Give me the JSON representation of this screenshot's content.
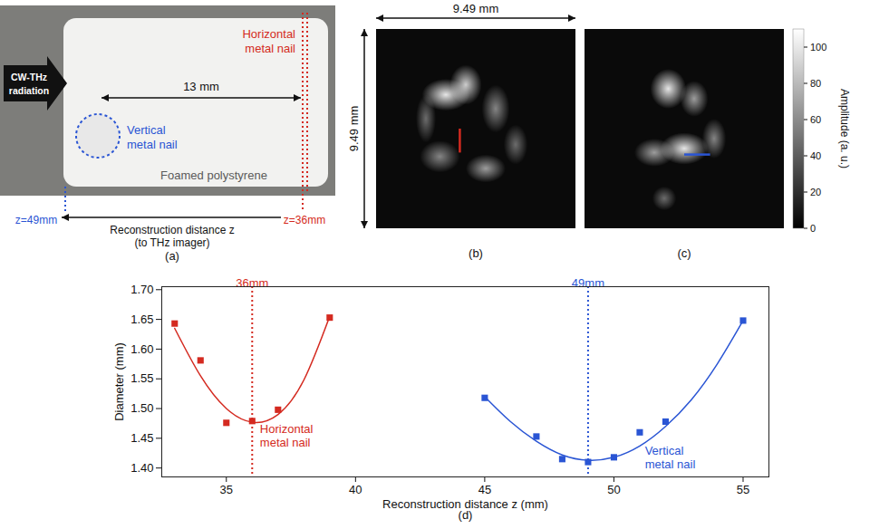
{
  "chart_data": {
    "type": "scatter",
    "panel_label": "(d)",
    "xlabel": "Reconstruction distance z (mm)",
    "ylabel": "Diameter (mm)",
    "xlim": [
      32.5,
      56
    ],
    "xticks": [
      35,
      40,
      45,
      50,
      55
    ],
    "ylim": [
      1.385,
      1.705
    ],
    "yticks": [
      {
        "value": 1.4,
        "label": "1.40"
      },
      1.45,
      {
        "value": 1.5,
        "label": "1.50"
      },
      1.55,
      {
        "value": 1.6,
        "label": "1.60"
      },
      1.65,
      {
        "value": 1.7,
        "label": "1.70"
      }
    ],
    "grid": false,
    "series": [
      {
        "name": "Horizontal metal nail",
        "color": "#d42a20",
        "marker": "square",
        "x": [
          33,
          34,
          35,
          36,
          37,
          39
        ],
        "values": [
          1.643,
          1.581,
          1.476,
          1.479,
          1.498,
          1.653
        ],
        "fit": {
          "x": [
            33,
            34,
            35,
            36,
            37,
            38,
            39
          ],
          "values": [
            1.635,
            1.555,
            1.5,
            1.477,
            1.49,
            1.548,
            1.655
          ]
        }
      },
      {
        "name": "Vertical metal nail",
        "color": "#2a55d4",
        "marker": "square",
        "x": [
          45,
          47,
          48,
          49,
          50,
          51,
          52,
          55
        ],
        "values": [
          1.518,
          1.453,
          1.415,
          1.41,
          1.418,
          1.46,
          1.478,
          1.648
        ],
        "fit": {
          "x": [
            45,
            46,
            47,
            48,
            49,
            50,
            51,
            52,
            53,
            54,
            55
          ],
          "values": [
            1.52,
            1.478,
            1.445,
            1.422,
            1.413,
            1.418,
            1.437,
            1.47,
            1.515,
            1.575,
            1.648
          ]
        }
      }
    ],
    "annotations": [
      {
        "text": "36mm",
        "x": 36,
        "color": "#d42a20",
        "line_style": "dotted"
      },
      {
        "text": "49mm",
        "x": 49,
        "color": "#2a55d4",
        "line_style": "dotted"
      }
    ]
  },
  "panel_a": {
    "label": "(a)",
    "source": "CW-THz radiation",
    "horizontal_nail": "Horizontal metal nail",
    "distance": "13 mm",
    "vertical_nail": "Vertical metal nail",
    "material": "Foamed polystyrene",
    "z_far": "z=49mm",
    "z_near": "z=36mm",
    "axis_title": "Reconstruction distance z",
    "axis_subtitle": "(to THz imager)"
  },
  "panel_b": {
    "label": "(b)",
    "width_label": "9.49 mm",
    "height_label": "9.49 mm"
  },
  "panel_c": {
    "label": "(c)"
  },
  "colorbar": {
    "label": "Amplitude (a. u.)",
    "range": [
      0,
      110
    ],
    "ticks": [
      0,
      20,
      40,
      60,
      80,
      100
    ]
  }
}
